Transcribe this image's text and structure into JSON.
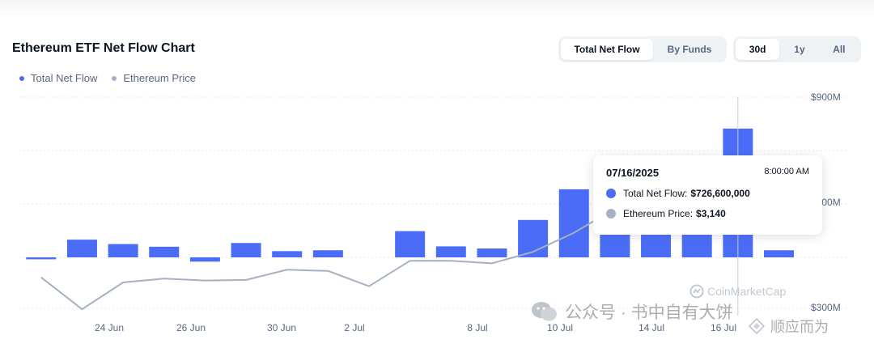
{
  "title": "Ethereum ETF Net Flow Chart",
  "legend": [
    {
      "label": "Total Net Flow",
      "color": "#4a6cf7"
    },
    {
      "label": "Ethereum Price",
      "color": "#a6b0c3"
    }
  ],
  "view_toggle": {
    "options": [
      "Total Net Flow",
      "By Funds"
    ],
    "selected": "Total Net Flow"
  },
  "range_toggle": {
    "options": [
      "30d",
      "1y",
      "All"
    ],
    "selected": "30d"
  },
  "tooltip": {
    "date": "07/16/2025",
    "time": "8:00:00 AM",
    "flow_label": "Total Net Flow:",
    "flow_value": "$726,600,000",
    "price_label": "Ethereum Price:",
    "price_value": "$3,140"
  },
  "watermarks": {
    "brand": "CoinMarketCap",
    "cn_account": "公众号 · 书中自有大饼",
    "cn_author": "顺应而为"
  },
  "chart_data": {
    "type": "bar",
    "title": "Ethereum ETF Net Flow Chart",
    "x_tick_labels": [
      "24 Jun",
      "26 Jun",
      "30 Jun",
      "2 Jul",
      "8 Jul",
      "10 Jul",
      "14 Jul",
      "16 Jul"
    ],
    "y_tick_labels": [
      "$900M",
      "$600M",
      "$300M"
    ],
    "grid": true,
    "legend_position": "top-left",
    "bar_series": {
      "name": "Total Net Flow",
      "color": "#4a6cf7",
      "dates": [
        "06/20/2025",
        "06/23/2025",
        "06/24/2025",
        "06/25/2025",
        "06/26/2025",
        "06/27/2025",
        "06/30/2025",
        "07/01/2025",
        "07/02/2025",
        "07/03/2025",
        "07/07/2025",
        "07/08/2025",
        "07/09/2025",
        "07/10/2025",
        "07/11/2025",
        "07/14/2025",
        "07/15/2025",
        "07/16/2025",
        "07/17/2025"
      ],
      "values": [
        -11,
        100,
        75,
        60,
        -24,
        81,
        35,
        40,
        0,
        148,
        62,
        50,
        211,
        384,
        200,
        200,
        200,
        726.6,
        40
      ]
    },
    "line_series": {
      "name": "Ethereum Price",
      "color": "#a6b0c3",
      "values": [
        2440,
        2190,
        2400,
        2430,
        2415,
        2420,
        2500,
        2490,
        2370,
        2570,
        2570,
        2550,
        2640,
        2790,
        2980,
        3000,
        3020,
        3140,
        3310
      ]
    },
    "tooltip_date": "07/16/2025"
  }
}
